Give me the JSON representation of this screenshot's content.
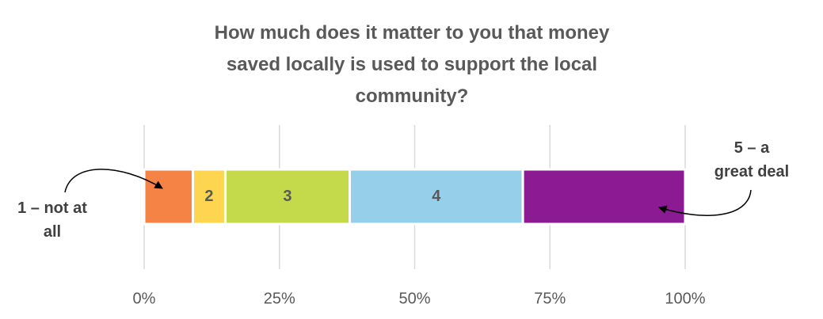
{
  "chart_data": {
    "type": "stacked-barh",
    "title": "How much does it matter to you that money saved locally is used to support the local community?",
    "categories": [
      null
    ],
    "series": [
      {
        "name": "1 – not at all",
        "color": "#f58345",
        "values": [
          9
        ]
      },
      {
        "name": "2",
        "color": "#fdd54e",
        "values": [
          6
        ]
      },
      {
        "name": "3",
        "color": "#c5da4b",
        "values": [
          23
        ]
      },
      {
        "name": "4",
        "color": "#96cfea",
        "values": [
          32
        ]
      },
      {
        "name": "5 – a great deal",
        "color": "#8b1a93",
        "values": [
          30
        ]
      }
    ],
    "xlim": [
      0,
      100
    ],
    "xticks": [
      {
        "value": 0,
        "label": "0%"
      },
      {
        "value": 25,
        "label": "25%"
      },
      {
        "value": 50,
        "label": "50%"
      },
      {
        "value": 75,
        "label": "75%"
      },
      {
        "value": 100,
        "label": "100%"
      }
    ],
    "grid": true
  }
}
